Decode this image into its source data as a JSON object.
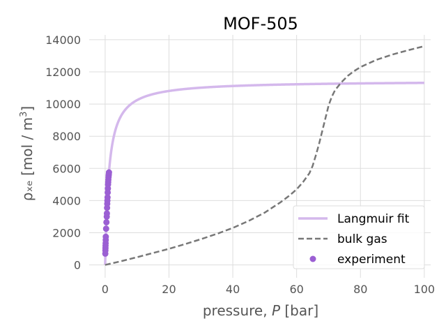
{
  "chart_data": {
    "type": "line",
    "title": "MOF-505",
    "xlabel_prefix": "pressure, ",
    "xlabel_var": "P",
    "xlabel_suffix": " [bar]",
    "ylabel_main": "ρₓₑ [mol / m",
    "ylabel_sup": "3",
    "ylabel_close": "]",
    "xlim": [
      -5,
      102
    ],
    "ylim": [
      -800,
      14300
    ],
    "xticks": [
      0,
      20,
      40,
      60,
      80,
      100
    ],
    "yticks": [
      0,
      2000,
      4000,
      6000,
      8000,
      10000,
      12000,
      14000
    ],
    "grid": true,
    "legend_position": "lower-right",
    "series": [
      {
        "name": "Langmuir fit",
        "kind": "line",
        "color": "#d4b8ec",
        "style": "solid",
        "model": {
          "Nmax": 11450,
          "K": 0.85
        },
        "x_range": [
          0,
          100
        ]
      },
      {
        "name": "bulk gas",
        "kind": "line",
        "color": "#777777",
        "style": "dashed",
        "x": [
          0,
          5,
          10,
          15,
          20,
          25,
          30,
          35,
          40,
          45,
          50,
          55,
          58,
          60,
          62,
          64,
          65,
          66,
          67,
          68,
          69,
          70,
          71,
          72,
          74,
          76,
          78,
          80,
          85,
          90,
          95,
          100
        ],
        "y": [
          0,
          230,
          480,
          740,
          1000,
          1290,
          1600,
          1930,
          2300,
          2740,
          3250,
          3900,
          4350,
          4700,
          5150,
          5700,
          6150,
          6800,
          7500,
          8300,
          9100,
          9900,
          10450,
          10850,
          11350,
          11750,
          12050,
          12300,
          12750,
          13080,
          13350,
          13600
        ]
      },
      {
        "name": "experiment",
        "kind": "scatter",
        "color": "#9b5fd3",
        "points": [
          [
            0.05,
            700
          ],
          [
            0.08,
            900
          ],
          [
            0.1,
            1050
          ],
          [
            0.12,
            1200
          ],
          [
            0.15,
            1350
          ],
          [
            0.18,
            1550
          ],
          [
            0.2,
            1750
          ],
          [
            0.3,
            2250
          ],
          [
            0.4,
            2650
          ],
          [
            0.5,
            3000
          ],
          [
            0.55,
            3200
          ],
          [
            0.6,
            3550
          ],
          [
            0.65,
            3800
          ],
          [
            0.7,
            4000
          ],
          [
            0.75,
            4200
          ],
          [
            0.8,
            4500
          ],
          [
            0.85,
            4750
          ],
          [
            0.9,
            5000
          ],
          [
            0.95,
            5150
          ],
          [
            1.0,
            5300
          ],
          [
            1.05,
            5450
          ],
          [
            1.1,
            5550
          ],
          [
            1.15,
            5650
          ],
          [
            1.2,
            5750
          ]
        ]
      }
    ]
  }
}
